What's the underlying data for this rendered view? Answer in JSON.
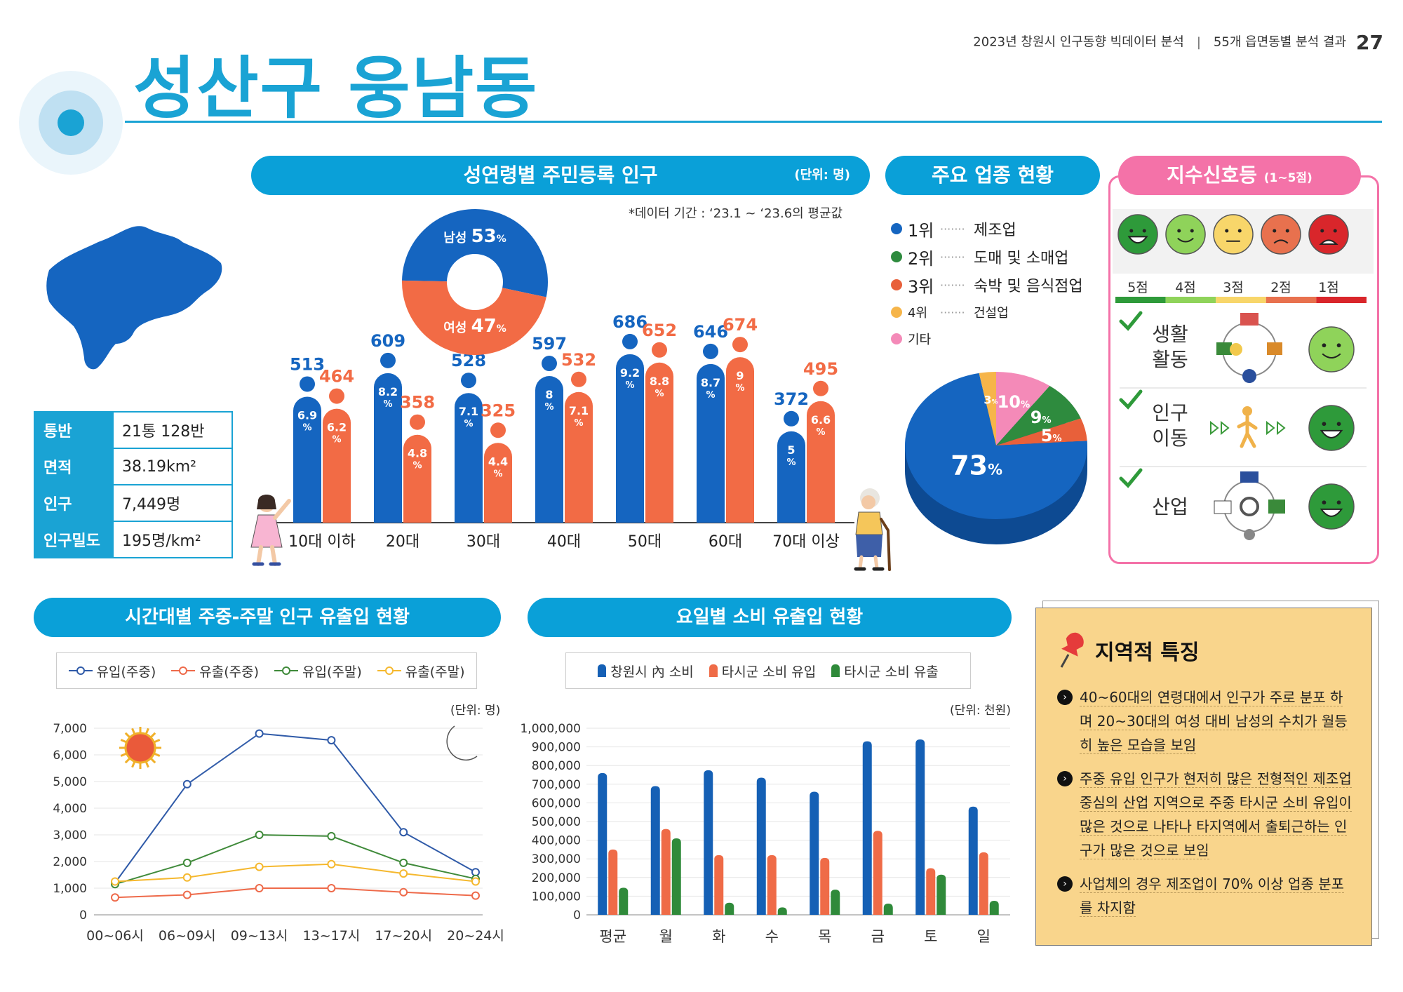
{
  "header": {
    "title": "성산구 웅남동",
    "report": "2023년 창원시 인구동향 빅데이터 분석",
    "section": "55개 읍면동별 분석 결과",
    "page": "27"
  },
  "colors": {
    "accent": "#1aa3d4",
    "male": "#1565c0",
    "female": "#f26b45",
    "pink": "#f472a8"
  },
  "stats": [
    {
      "key": "통반",
      "value": "21통 128반"
    },
    {
      "key": "면적",
      "value": "38.19km²"
    },
    {
      "key": "인구",
      "value": "7,449명"
    },
    {
      "key": "인구밀도",
      "value": "195명/km²"
    }
  ],
  "age_chart": {
    "title": "성연령별 주민등록 인구",
    "unit": "(단위: 명)",
    "period": "*데이터 기간 : ‘23.1 ~ ‘23.6의 평균값",
    "gender_donut": {
      "male_label": "남성",
      "male_pct": "53",
      "female_label": "여성",
      "female_pct": "47",
      "unit": "%"
    },
    "chart_data": {
      "type": "bar",
      "categories": [
        "10대 이하",
        "20대",
        "30대",
        "40대",
        "50대",
        "60대",
        "70대 이상"
      ],
      "series": [
        {
          "name": "남성",
          "values": [
            513,
            609,
            528,
            597,
            686,
            646,
            372
          ],
          "pct": [
            "6.9",
            "8.2",
            "7.1",
            "8",
            "9.2",
            "8.7",
            "5"
          ]
        },
        {
          "name": "여성",
          "values": [
            464,
            358,
            325,
            532,
            652,
            674,
            495
          ],
          "pct": [
            "6.2",
            "4.8",
            "4.4",
            "7.1",
            "8.8",
            "9",
            "6.6"
          ]
        }
      ],
      "pct_unit": "%"
    }
  },
  "industry": {
    "title": "주요 업종 현황",
    "legend": [
      {
        "rank": "1위",
        "name": "제조업",
        "color": "#1565c0"
      },
      {
        "rank": "2위",
        "name": "도매 및 소매업",
        "color": "#2e8b3e"
      },
      {
        "rank": "3위",
        "name": "숙박 및 음식점업",
        "color": "#e8603a"
      },
      {
        "rank": "4위",
        "name": "건설업",
        "color": "#f6b54a"
      },
      {
        "rank": "기타",
        "name": "",
        "color": "#f48ab8"
      }
    ],
    "chart_data": {
      "type": "pie",
      "labels": [
        "제조업",
        "도매 및 소매업",
        "숙박 및 음식점업",
        "건설업",
        "기타"
      ],
      "values": [
        73,
        9,
        5,
        3,
        10
      ],
      "value_labels": [
        "73",
        "9",
        "5",
        "3",
        "10"
      ],
      "unit": "%"
    }
  },
  "signal": {
    "title": "지수신호등",
    "range": "(1~5점)",
    "scale": [
      {
        "label": "5점",
        "color": "#2e9a3a"
      },
      {
        "label": "4점",
        "color": "#8fd35a"
      },
      {
        "label": "3점",
        "color": "#f8d66a"
      },
      {
        "label": "2점",
        "color": "#e8714e"
      },
      {
        "label": "1점",
        "color": "#d9262b"
      }
    ],
    "items": [
      {
        "label1": "생활",
        "label2": "활동",
        "score": 4
      },
      {
        "label1": "인구",
        "label2": "이동",
        "score": 5
      },
      {
        "label1": "",
        "label2": "산업",
        "score": 5
      }
    ]
  },
  "time_chart": {
    "title": "시간대별 주중-주말 인구 유출입 현황",
    "unit": "(단위: 명)",
    "chart_data": {
      "type": "line",
      "categories": [
        "00~06시",
        "06~09시",
        "09~13시",
        "13~17시",
        "17~20시",
        "20~24시"
      ],
      "ylim": [
        0,
        7000
      ],
      "yticks": [
        "0",
        "1,000",
        "2,000",
        "3,000",
        "4,000",
        "5,000",
        "6,000",
        "7,000"
      ],
      "series": [
        {
          "name": "유입(주중)",
          "color": "#2f5aa8",
          "values": [
            1200,
            4900,
            6800,
            6550,
            3100,
            1600
          ]
        },
        {
          "name": "유출(주중)",
          "color": "#ee6a4a",
          "values": [
            650,
            750,
            1000,
            1000,
            850,
            720
          ]
        },
        {
          "name": "유입(주말)",
          "color": "#3f8a3a",
          "values": [
            1150,
            1950,
            3000,
            2950,
            1950,
            1350
          ]
        },
        {
          "name": "유출(주말)",
          "color": "#f5b82e",
          "values": [
            1250,
            1400,
            1800,
            1900,
            1550,
            1250
          ]
        }
      ]
    }
  },
  "day_chart": {
    "title": "요일별 소비 유출입 현황",
    "unit": "(단위: 천원)",
    "chart_data": {
      "type": "bar",
      "categories": [
        "평균",
        "월",
        "화",
        "수",
        "목",
        "금",
        "토",
        "일"
      ],
      "ylim": [
        0,
        1000000
      ],
      "yticks": [
        "0",
        "100,000",
        "200,000",
        "300,000",
        "400,000",
        "500,000",
        "600,000",
        "700,000",
        "800,000",
        "900,000",
        "1,000,000"
      ],
      "series": [
        {
          "name": "창원시 內 소비",
          "color": "#1560b5",
          "values": [
            760000,
            690000,
            775000,
            735000,
            660000,
            930000,
            940000,
            580000
          ]
        },
        {
          "name": "타시군 소비 유입",
          "color": "#ef6b47",
          "values": [
            350000,
            460000,
            320000,
            320000,
            305000,
            450000,
            250000,
            335000
          ]
        },
        {
          "name": "타시군 소비 유출",
          "color": "#2f8a3a",
          "values": [
            145000,
            410000,
            65000,
            40000,
            135000,
            60000,
            215000,
            75000
          ]
        }
      ]
    }
  },
  "features": {
    "title": "지역적 특징",
    "items": [
      "40~60대의 연령대에서 인구가 주로 분포 하며 20~30대의 여성 대비 남성의 수치가 월등히 높은 모습을 보임",
      "주중 유입 인구가 현저히 많은 전형적인 제조업 중심의 산업 지역으로 주중 타시군 소비 유입이 많은 것으로 나타나 타지역에서 출퇴근하는 인구가 많은 것으로 보임",
      "사업체의 경우 제조업이 70% 이상 업종 분포를 차지함"
    ]
  }
}
